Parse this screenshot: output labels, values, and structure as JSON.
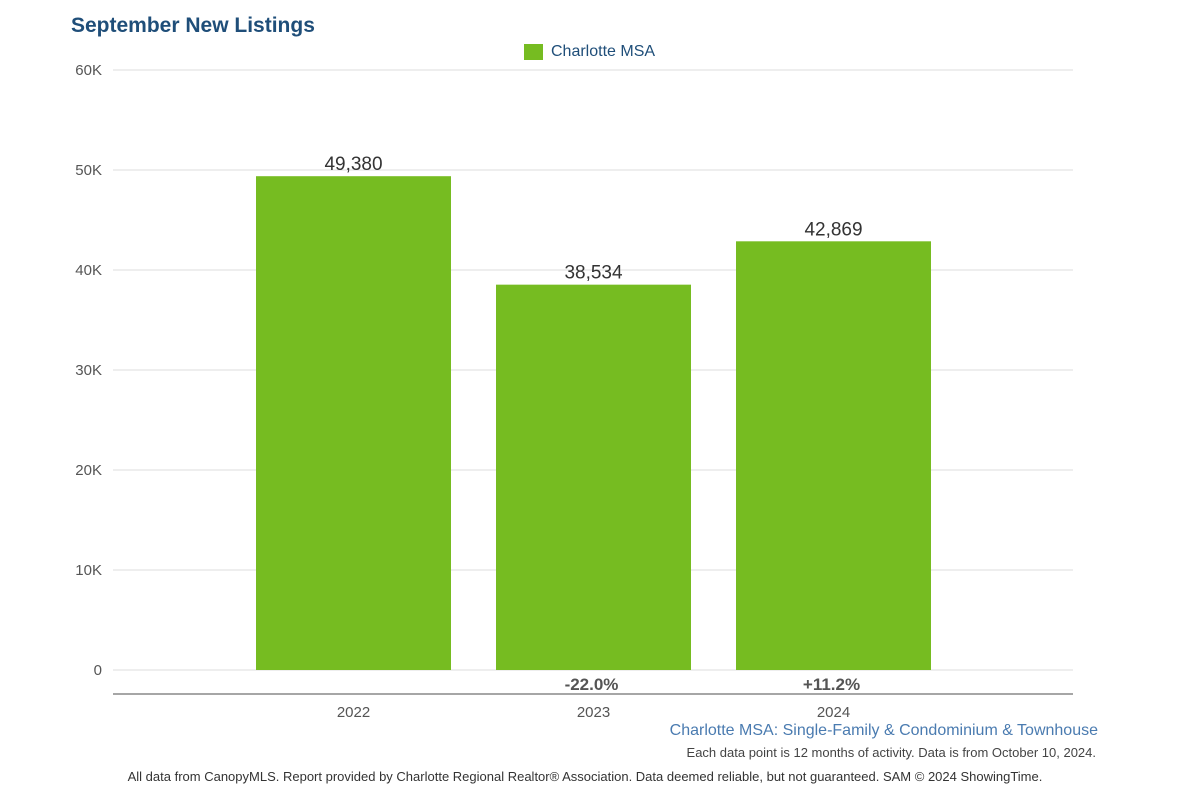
{
  "chart_data": {
    "type": "bar",
    "title": "September New Listings",
    "categories": [
      "2022",
      "2023",
      "2024"
    ],
    "series": [
      {
        "name": "Charlotte MSA",
        "values": [
          49380,
          38534,
          42869
        ]
      }
    ],
    "value_labels": [
      "49,380",
      "38,534",
      "42,869"
    ],
    "change_labels": [
      "",
      "-22.0%",
      "+11.2%"
    ],
    "y_ticks": [
      0,
      10000,
      20000,
      30000,
      40000,
      50000,
      60000
    ],
    "y_tick_labels": [
      "0",
      "10K",
      "20K",
      "30K",
      "40K",
      "50K",
      "60K"
    ],
    "ylim": [
      0,
      60000
    ],
    "xlabel": "",
    "ylabel": "",
    "grid": true,
    "legend_position": "top-center",
    "bar_color": "#76bc21"
  },
  "subtitle": "Charlotte MSA: Single-Family & Condominium & Townhouse",
  "note": "Each data point is 12 months of activity. Data is from October 10, 2024.",
  "footer": "All data from CanopyMLS. Report provided by Charlotte Regional Realtor® Association. Data deemed reliable, but not guaranteed. SAM © 2024 ShowingTime.",
  "colors": {
    "title": "#1f4e79",
    "grid": "#dcdcdc",
    "axis": "#888888"
  }
}
